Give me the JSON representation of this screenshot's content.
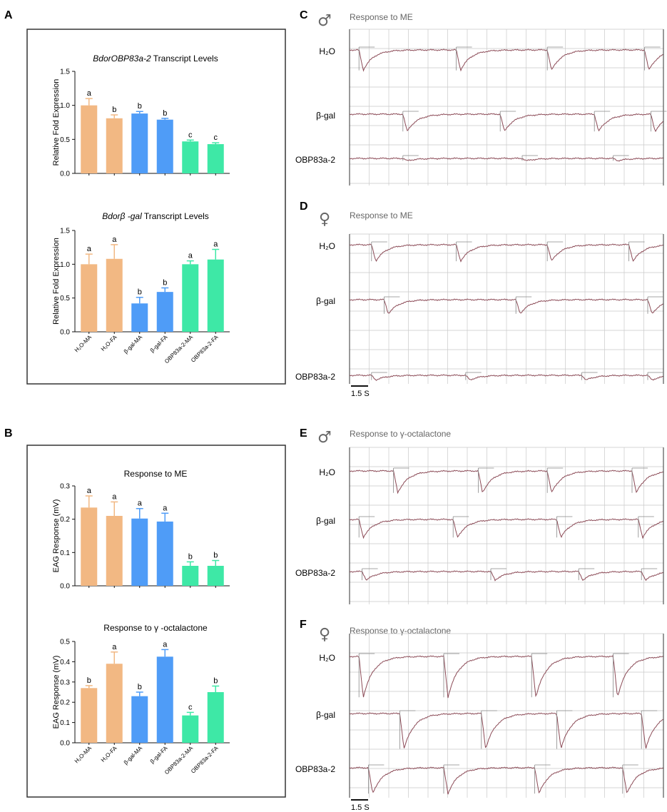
{
  "colors": {
    "h2o": "#f2b883",
    "bgal": "#4f9cf7",
    "obp": "#3ee8a6",
    "trace": "#8b4a56",
    "grid": "#c9c9c9",
    "text": "#111111",
    "header": "#666666"
  },
  "panel_letters": {
    "a": "A",
    "b": "B",
    "c": "C",
    "d": "D",
    "e": "E",
    "f": "F"
  },
  "bar_categories": [
    "H₂O-MA",
    "H₂O-FA",
    "β-gal-MA",
    "β-gal-FA",
    "OBP83a-2-MA",
    "OBP83a-2-FA"
  ],
  "chart_data": [
    {
      "id": "A1",
      "type": "bar",
      "title_italic": "BdorOBP83a-2",
      "title_rest": " Transcript Levels",
      "ylabel": "Relative Fold Expression",
      "ylim": [
        0,
        1.5
      ],
      "yticks": [
        "0.0",
        "0.5",
        "1.0",
        "1.5"
      ],
      "ytick_values": [
        0,
        0.5,
        1.0,
        1.5
      ],
      "values": [
        1.0,
        0.81,
        0.88,
        0.79,
        0.47,
        0.43
      ],
      "errors": [
        0.1,
        0.05,
        0.03,
        0.02,
        0.02,
        0.02
      ],
      "letters": [
        "a",
        "b",
        "b",
        "b",
        "c",
        "c"
      ],
      "show_xlabels": false
    },
    {
      "id": "A2",
      "type": "bar",
      "title_italic": "Bdorβ -gal",
      "title_rest": " Transcript Levels",
      "ylabel": "Relative Fold Expression",
      "ylim": [
        0,
        1.5
      ],
      "yticks": [
        "0.0",
        "0.5",
        "1.0",
        "1.5"
      ],
      "ytick_values": [
        0,
        0.5,
        1.0,
        1.5
      ],
      "values": [
        1.0,
        1.08,
        0.42,
        0.59,
        1.0,
        1.07
      ],
      "errors": [
        0.15,
        0.21,
        0.09,
        0.06,
        0.05,
        0.15
      ],
      "letters": [
        "a",
        "a",
        "b",
        "b",
        "a",
        "a"
      ],
      "show_xlabels": true
    },
    {
      "id": "B1",
      "type": "bar",
      "title_italic": "",
      "title_rest": "Response to ME",
      "ylabel": "EAG Response (mV)",
      "ylim": [
        0,
        0.3
      ],
      "yticks": [
        "0.0",
        "0.1",
        "0.2",
        "0.3"
      ],
      "ytick_values": [
        0,
        0.1,
        0.2,
        0.3
      ],
      "values": [
        0.235,
        0.21,
        0.202,
        0.193,
        0.06,
        0.06
      ],
      "errors": [
        0.035,
        0.042,
        0.03,
        0.025,
        0.012,
        0.016
      ],
      "letters": [
        "a",
        "a",
        "a",
        "a",
        "b",
        "b"
      ],
      "show_xlabels": false
    },
    {
      "id": "B2",
      "type": "bar",
      "title_italic": "",
      "title_rest": "Response to γ -octalactone",
      "ylabel": "EAG Response (mV)",
      "ylim": [
        0,
        0.5
      ],
      "yticks": [
        "0.0",
        "0.1",
        "0.2",
        "0.3",
        "0.4",
        "0.5"
      ],
      "ytick_values": [
        0,
        0.1,
        0.2,
        0.3,
        0.4,
        0.5
      ],
      "values": [
        0.27,
        0.39,
        0.23,
        0.425,
        0.135,
        0.25
      ],
      "errors": [
        0.012,
        0.058,
        0.02,
        0.035,
        0.015,
        0.03
      ],
      "letters": [
        "b",
        "a",
        "b",
        "a",
        "c",
        "b"
      ],
      "show_xlabels": true
    }
  ],
  "traces": {
    "row_labels": [
      "H₂O",
      "β-gal",
      "OBP83a-2"
    ],
    "scale_bar": "1.5 S",
    "panels": [
      {
        "id": "C",
        "symbol": "♂",
        "title": "Response to ME",
        "amplitudes": [
          0.26,
          0.22,
          0.03
        ],
        "events": [
          [
            0.03,
            0.34,
            0.63,
            0.94
          ],
          [
            0.17,
            0.48,
            0.78,
            0.96
          ],
          [
            0.17,
            0.55,
            0.84
          ]
        ]
      },
      {
        "id": "D",
        "symbol": "♀",
        "title": "Response to ME",
        "amplitudes": [
          0.21,
          0.18,
          0.06
        ],
        "events": [
          [
            0.07,
            0.34,
            0.63,
            0.89
          ],
          [
            0.11,
            0.53,
            0.95
          ],
          [
            0.07,
            0.37,
            0.74,
            0.95
          ]
        ]
      },
      {
        "id": "E",
        "symbol": "♂",
        "title": "Response to γ-octalactone",
        "amplitudes": [
          0.28,
          0.23,
          0.11
        ],
        "events": [
          [
            0.14,
            0.41,
            0.63,
            0.9
          ],
          [
            0.03,
            0.33,
            0.66,
            0.92
          ],
          [
            0.04,
            0.45,
            0.73,
            0.93
          ]
        ]
      },
      {
        "id": "F",
        "symbol": "♀",
        "title": "Response to γ-octalactone",
        "amplitudes": [
          0.52,
          0.45,
          0.33
        ],
        "events": [
          [
            0.03,
            0.3,
            0.58,
            0.84
          ],
          [
            0.16,
            0.42,
            0.66,
            0.93
          ],
          [
            0.06,
            0.3,
            0.59,
            0.87
          ]
        ]
      }
    ]
  }
}
